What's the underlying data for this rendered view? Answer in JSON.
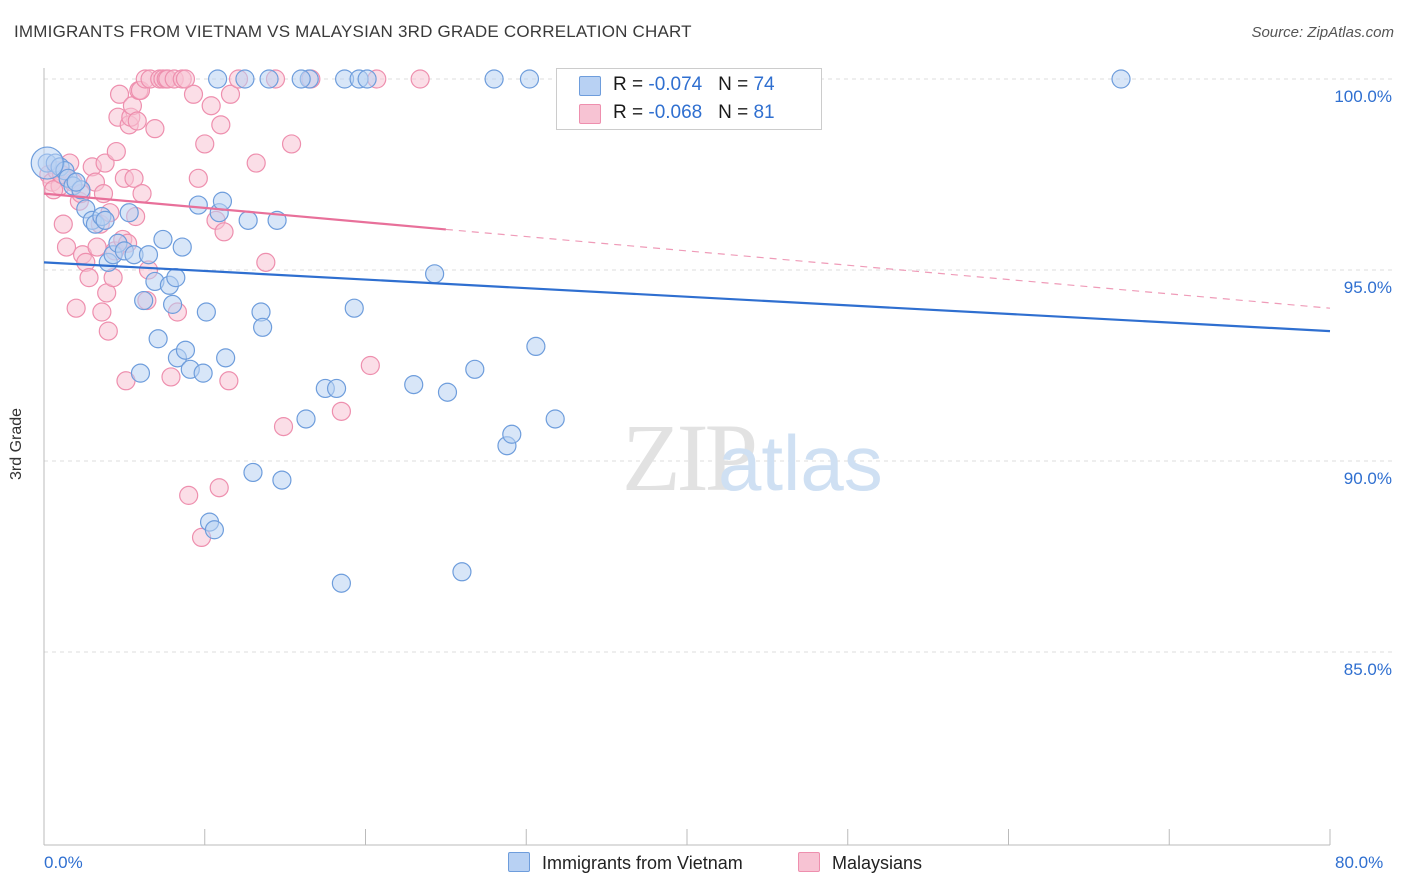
{
  "title": "IMMIGRANTS FROM VIETNAM VS MALAYSIAN 3RD GRADE CORRELATION CHART",
  "source": "Source: ZipAtlas.com",
  "watermark": {
    "zip": "ZIP",
    "atlas": "atlas"
  },
  "legend": {
    "rows": [
      {
        "r_label": "R = ",
        "r_value": "-0.074",
        "n_label": "N = ",
        "n_value": "74"
      },
      {
        "r_label": "R = ",
        "r_value": "-0.068",
        "n_label": "N = ",
        "n_value": "81"
      }
    ]
  },
  "bottom_legend": {
    "series1": "Immigrants from Vietnam",
    "series2": "Malaysians"
  },
  "x_tick_labels": {
    "left": "0.0%",
    "right": "80.0%"
  },
  "y_tick_labels": [
    "100.0%",
    "95.0%",
    "90.0%",
    "85.0%"
  ],
  "colors": {
    "blue_fill": "#b8d1f3",
    "blue_stroke": "#6e9ddc",
    "blue_line": "#2f6fd0",
    "pink_fill": "#f7c3d3",
    "pink_stroke": "#ee8fae",
    "pink_line": "#e8709a",
    "grid": "#dcdcdc",
    "axis_label": "#2f6fd0"
  },
  "chart_data": {
    "type": "scatter",
    "title": "IMMIGRANTS FROM VIETNAM VS MALAYSIAN 3RD GRADE CORRELATION CHART",
    "xlabel": "",
    "ylabel": "3rd Grade",
    "xlim": [
      0,
      80
    ],
    "ylim": [
      80.5,
      100.3
    ],
    "y_ticks": [
      100,
      95,
      90,
      85
    ],
    "grid": true,
    "legend_position": "top-center",
    "series": [
      {
        "name": "Immigrants from Vietnam",
        "color": "#6e9ddc",
        "r": -0.074,
        "n": 74,
        "trend": {
          "x": [
            0,
            80
          ],
          "y": [
            95.2,
            93.4
          ],
          "dashed_from": null
        },
        "points": [
          [
            0.2,
            97.8
          ],
          [
            0.7,
            97.8
          ],
          [
            1.0,
            97.7
          ],
          [
            1.3,
            97.6
          ],
          [
            1.5,
            97.4
          ],
          [
            1.8,
            97.2
          ],
          [
            2.3,
            97.1
          ],
          [
            2.6,
            96.6
          ],
          [
            3.0,
            96.3
          ],
          [
            3.2,
            96.2
          ],
          [
            3.6,
            96.4
          ],
          [
            3.8,
            96.3
          ],
          [
            4.0,
            95.2
          ],
          [
            4.3,
            95.4
          ],
          [
            4.6,
            95.7
          ],
          [
            5.0,
            95.5
          ],
          [
            5.3,
            96.5
          ],
          [
            5.6,
            95.4
          ],
          [
            6.0,
            92.3
          ],
          [
            6.2,
            94.2
          ],
          [
            6.5,
            95.4
          ],
          [
            6.9,
            94.7
          ],
          [
            7.1,
            93.2
          ],
          [
            7.4,
            95.8
          ],
          [
            7.8,
            94.6
          ],
          [
            8.0,
            94.1
          ],
          [
            8.2,
            94.8
          ],
          [
            8.3,
            92.7
          ],
          [
            8.6,
            95.6
          ],
          [
            8.8,
            92.9
          ],
          [
            9.1,
            92.4
          ],
          [
            9.6,
            96.7
          ],
          [
            9.9,
            92.3
          ],
          [
            10.1,
            93.9
          ],
          [
            10.3,
            88.4
          ],
          [
            10.6,
            88.2
          ],
          [
            10.8,
            100.0
          ],
          [
            10.9,
            96.5
          ],
          [
            11.1,
            96.8
          ],
          [
            11.3,
            92.7
          ],
          [
            12.5,
            100.0
          ],
          [
            12.7,
            96.3
          ],
          [
            13.0,
            89.7
          ],
          [
            13.5,
            93.9
          ],
          [
            13.6,
            93.5
          ],
          [
            14.0,
            100.0
          ],
          [
            14.5,
            96.3
          ],
          [
            14.8,
            89.5
          ],
          [
            16.3,
            91.1
          ],
          [
            16.5,
            100.0
          ],
          [
            17.5,
            91.9
          ],
          [
            18.2,
            91.9
          ],
          [
            18.5,
            86.8
          ],
          [
            18.7,
            100.0
          ],
          [
            19.3,
            94.0
          ],
          [
            19.6,
            100.0
          ],
          [
            20.1,
            100.0
          ],
          [
            23.0,
            92.0
          ],
          [
            24.3,
            94.9
          ],
          [
            25.1,
            91.8
          ],
          [
            26.0,
            87.1
          ],
          [
            26.8,
            92.4
          ],
          [
            28.0,
            100.0
          ],
          [
            28.8,
            90.4
          ],
          [
            29.1,
            90.7
          ],
          [
            30.2,
            100.0
          ],
          [
            30.6,
            93.0
          ],
          [
            31.8,
            91.1
          ],
          [
            34.2,
            100.0
          ],
          [
            36.5,
            100.0
          ],
          [
            40.0,
            100.0
          ],
          [
            67.0,
            100.0
          ],
          [
            16.0,
            100.0
          ],
          [
            2.0,
            97.3
          ]
        ]
      },
      {
        "name": "Malaysians",
        "color": "#ee8fae",
        "r": -0.068,
        "n": 81,
        "trend": {
          "x": [
            0,
            80
          ],
          "y": [
            97.0,
            94.0
          ],
          "solid_until": 25
        },
        "points": [
          [
            0.3,
            97.5
          ],
          [
            0.5,
            97.3
          ],
          [
            0.8,
            97.6
          ],
          [
            1.0,
            97.2
          ],
          [
            1.2,
            96.2
          ],
          [
            1.4,
            95.6
          ],
          [
            1.6,
            97.8
          ],
          [
            1.8,
            97.3
          ],
          [
            2.0,
            94.0
          ],
          [
            2.2,
            96.8
          ],
          [
            2.3,
            97.0
          ],
          [
            2.4,
            95.4
          ],
          [
            2.6,
            95.2
          ],
          [
            2.8,
            94.8
          ],
          [
            3.0,
            97.7
          ],
          [
            3.2,
            97.3
          ],
          [
            3.3,
            95.6
          ],
          [
            3.5,
            96.2
          ],
          [
            3.6,
            93.9
          ],
          [
            3.7,
            97.0
          ],
          [
            3.8,
            97.8
          ],
          [
            3.9,
            94.4
          ],
          [
            4.0,
            93.4
          ],
          [
            4.1,
            96.5
          ],
          [
            4.3,
            94.8
          ],
          [
            4.4,
            95.5
          ],
          [
            4.5,
            98.1
          ],
          [
            4.6,
            99.0
          ],
          [
            4.7,
            99.6
          ],
          [
            4.9,
            95.8
          ],
          [
            5.0,
            97.4
          ],
          [
            5.1,
            92.1
          ],
          [
            5.2,
            95.7
          ],
          [
            5.3,
            98.8
          ],
          [
            5.4,
            99.0
          ],
          [
            5.5,
            99.3
          ],
          [
            5.6,
            97.4
          ],
          [
            5.7,
            96.4
          ],
          [
            5.8,
            98.9
          ],
          [
            5.9,
            99.7
          ],
          [
            6.0,
            99.7
          ],
          [
            6.1,
            97.0
          ],
          [
            6.3,
            100.0
          ],
          [
            6.4,
            94.2
          ],
          [
            6.5,
            95.0
          ],
          [
            6.6,
            100.0
          ],
          [
            6.9,
            98.7
          ],
          [
            7.2,
            100.0
          ],
          [
            7.4,
            100.0
          ],
          [
            7.6,
            100.0
          ],
          [
            7.7,
            100.0
          ],
          [
            7.9,
            92.2
          ],
          [
            8.1,
            100.0
          ],
          [
            8.3,
            93.9
          ],
          [
            8.6,
            100.0
          ],
          [
            8.8,
            100.0
          ],
          [
            9.0,
            89.1
          ],
          [
            9.3,
            99.6
          ],
          [
            9.6,
            97.4
          ],
          [
            9.8,
            88.0
          ],
          [
            10.0,
            98.3
          ],
          [
            10.4,
            99.3
          ],
          [
            10.7,
            96.3
          ],
          [
            10.9,
            89.3
          ],
          [
            11.0,
            98.8
          ],
          [
            11.2,
            96.0
          ],
          [
            11.5,
            92.1
          ],
          [
            11.6,
            99.6
          ],
          [
            12.1,
            100.0
          ],
          [
            13.2,
            97.8
          ],
          [
            13.8,
            95.2
          ],
          [
            14.4,
            100.0
          ],
          [
            14.9,
            90.9
          ],
          [
            15.4,
            98.3
          ],
          [
            16.6,
            100.0
          ],
          [
            18.5,
            91.3
          ],
          [
            20.7,
            100.0
          ],
          [
            20.3,
            92.5
          ],
          [
            23.4,
            100.0
          ],
          [
            0.6,
            97.1
          ],
          [
            1.1,
            97.5
          ]
        ]
      }
    ]
  }
}
